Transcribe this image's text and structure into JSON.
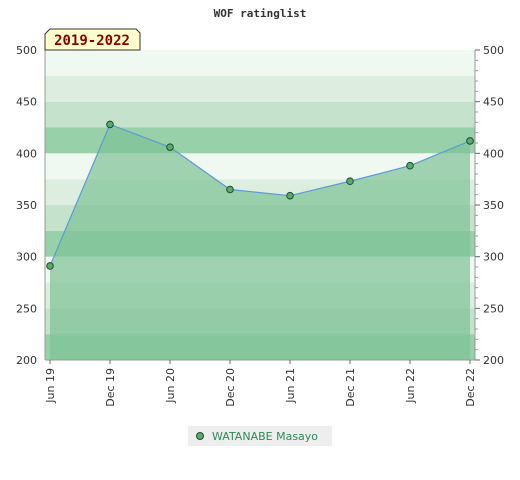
{
  "chart_data": {
    "type": "area",
    "title": "WOF ratinglist",
    "range_label": "2019-2022",
    "ylim": [
      200,
      500
    ],
    "yticks": [
      200,
      250,
      300,
      350,
      400,
      450,
      500
    ],
    "categories": [
      "Jun 19",
      "Dec 19",
      "Jun 20",
      "Dec 20",
      "Jun 21",
      "Dec 21",
      "Jun 22",
      "Dec 22"
    ],
    "series": [
      {
        "name": "WATANABE Masayo",
        "values": [
          291,
          428,
          406,
          365,
          359,
          373,
          388,
          412
        ]
      }
    ],
    "legend_position": "bottom",
    "colors": {
      "line": "#5b9bd5",
      "fill": "#7ec296",
      "marker": "#5aaa6e",
      "marker_stroke": "#1e4d2b",
      "legend_text": "#2e8b57",
      "range_bg": "#ffffcc",
      "range_text": "#8b0000"
    }
  }
}
